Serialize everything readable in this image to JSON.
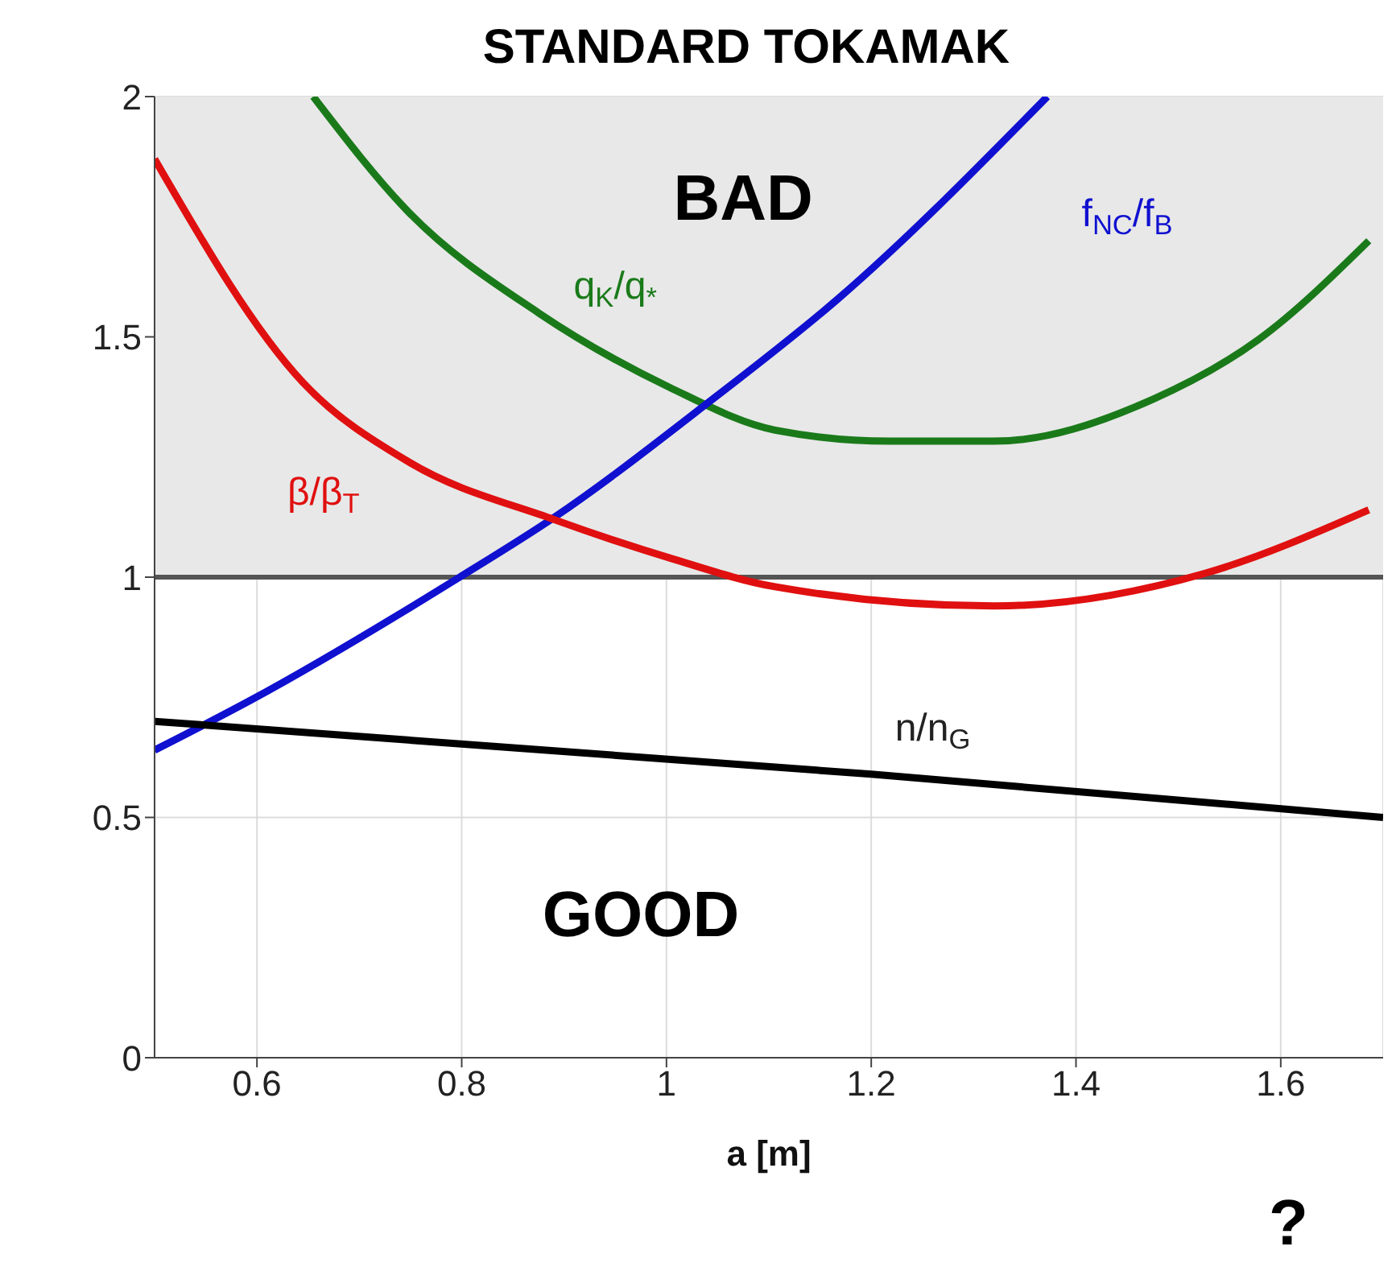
{
  "chart_data": {
    "type": "line",
    "title": "STANDARD TOKAMAK",
    "xlabel": "a [m]",
    "xlim": [
      0.5,
      1.7
    ],
    "xticks": [
      0.6,
      0.8,
      1,
      1.2,
      1.4,
      1.6
    ],
    "ylim": [
      0,
      2
    ],
    "yticks": [
      0,
      0.5,
      1,
      1.5,
      2
    ],
    "grid": true,
    "marker": "none",
    "line_style": "solid",
    "series": [
      {
        "name": "q$_{K}$/q$_{*}$",
        "color": "#1a7a1a",
        "x": [
          0.655,
          0.748,
          0.875,
          1.003,
          1.106,
          1.218,
          1.32,
          1.475,
          1.578,
          1.686
        ],
        "values": [
          2.0,
          1.76,
          1.55,
          1.395,
          1.306,
          1.283,
          1.283,
          1.37,
          1.494,
          1.7
        ]
      },
      {
        "name": "f$_{NC}$/f$_{B}$",
        "color": "#1010d0",
        "x": [
          0.5,
          0.594,
          0.798,
          0.89,
          1.04,
          1.168,
          1.372
        ],
        "values": [
          0.64,
          0.744,
          1.0,
          1.124,
          1.362,
          1.58,
          2.0
        ]
      },
      {
        "name": "β/β$_{T}$",
        "color": "#e01010",
        "x": [
          0.5,
          0.645,
          0.748,
          0.89,
          1.003,
          1.106,
          1.32,
          1.526,
          1.686
        ],
        "values": [
          1.87,
          1.405,
          1.24,
          1.12,
          1.04,
          0.98,
          0.94,
          1.008,
          1.14
        ]
      },
      {
        "name": "n/n$_{G}$",
        "color": "#000000",
        "x": [
          0.5,
          1.2,
          1.7
        ],
        "values": [
          0.7,
          0.59,
          0.5
        ]
      }
    ],
    "ref_lines": [
      {
        "axis": "y",
        "value": 1,
        "color": "#555555"
      }
    ],
    "bands": [
      {
        "axis": "y",
        "from": 1,
        "to": 2,
        "color": "#e8e8e8"
      }
    ],
    "annotations": [
      "BAD",
      "GOOD",
      "?"
    ]
  }
}
